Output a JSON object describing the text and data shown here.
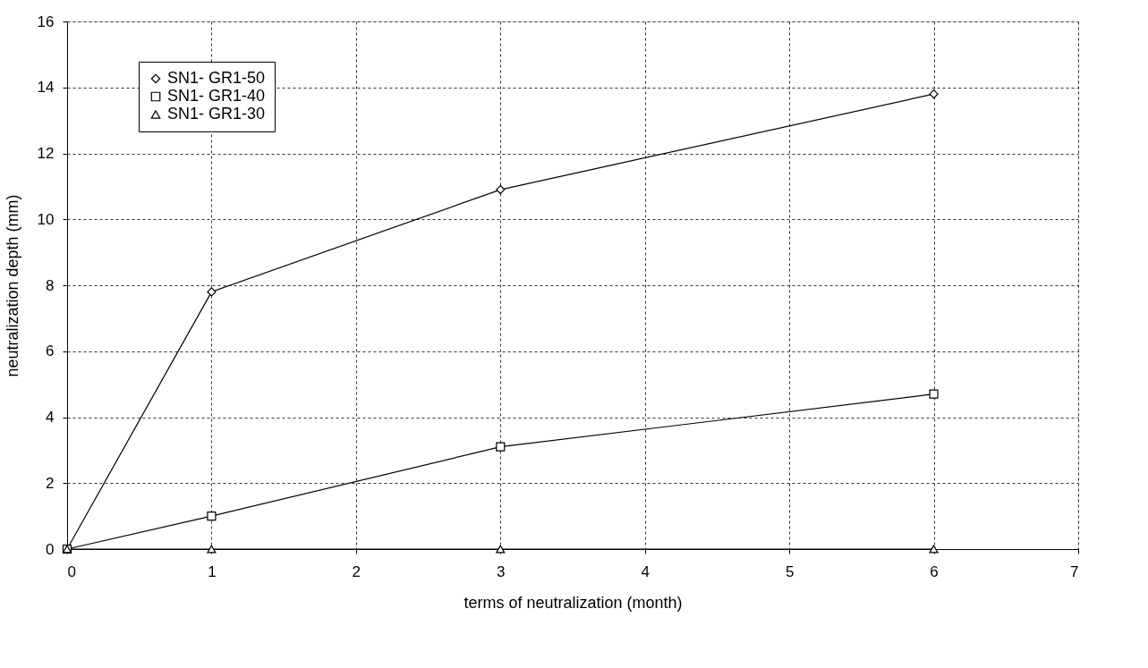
{
  "chart_data": {
    "type": "line",
    "xlabel": "terms of neutralization (month)",
    "ylabel": "neutralization depth (mm)",
    "xlim": [
      0,
      7
    ],
    "xticks": [
      0,
      1,
      2,
      3,
      4,
      5,
      6,
      7
    ],
    "ylim": [
      0,
      16
    ],
    "yticks": [
      0,
      2,
      4,
      6,
      8,
      10,
      12,
      14,
      16
    ],
    "grid": true,
    "legend": "top left",
    "line_style": "solid",
    "series": [
      {
        "name": "SN1- GR1-50",
        "color": "#000000",
        "marker": "diamond",
        "x": [
          0,
          1,
          3,
          6
        ],
        "values": [
          0,
          7.8,
          10.9,
          13.8
        ]
      },
      {
        "name": "SN1- GR1-40",
        "color": "#000000",
        "marker": "square",
        "x": [
          0,
          1,
          3,
          6
        ],
        "values": [
          0,
          1.0,
          3.1,
          4.7
        ]
      },
      {
        "name": "SN1- GR1-30",
        "color": "#000000",
        "marker": "triangle",
        "x": [
          0,
          1,
          3,
          6
        ],
        "values": [
          0,
          0,
          0,
          0
        ]
      }
    ]
  }
}
